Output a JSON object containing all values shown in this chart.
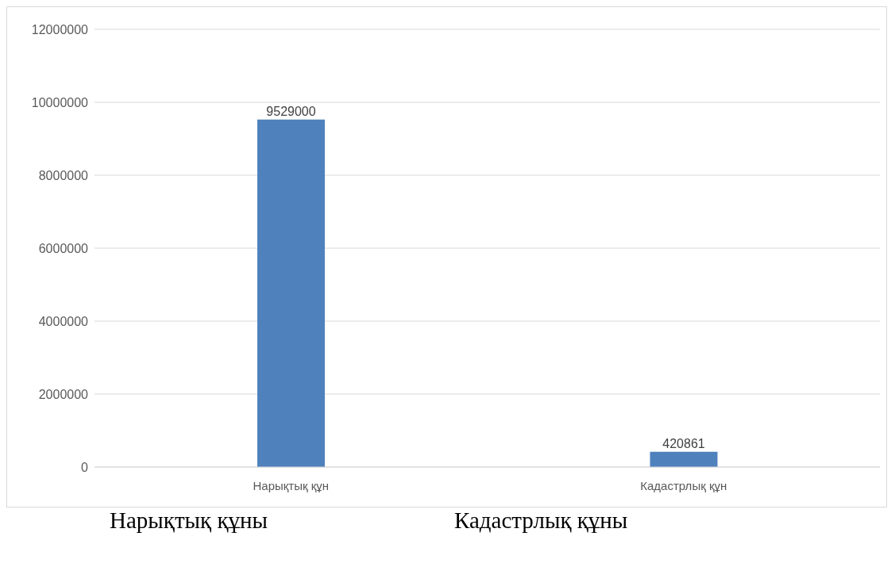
{
  "chart_data": {
    "type": "bar",
    "categories": [
      "Нарықтық құн",
      "Кадастрлық құн"
    ],
    "values": [
      9529000,
      420861
    ],
    "color": "#4f81bd",
    "ylim": [
      0,
      12000000
    ],
    "yticks": [
      0,
      2000000,
      4000000,
      6000000,
      8000000,
      10000000,
      12000000
    ],
    "grid": "y",
    "data_labels": true,
    "annotations": [
      "Нарықтық құны",
      "Кадастрлық құны"
    ]
  }
}
